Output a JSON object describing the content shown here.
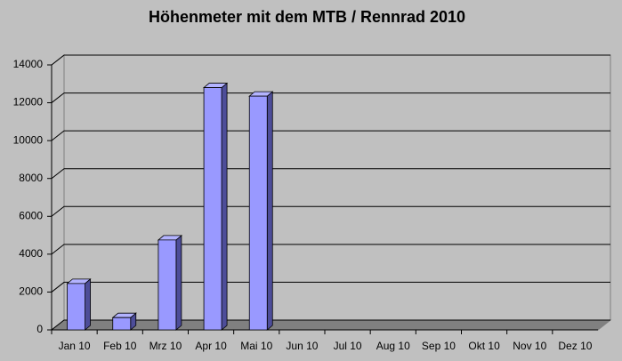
{
  "chart_data": {
    "type": "bar3d",
    "title": "Höhenmeter mit dem MTB / Rennrad 2010",
    "categories": [
      "Jan 10",
      "Feb 10",
      "Mrz 10",
      "Apr 10",
      "Mai 10",
      "Jun 10",
      "Jul 10",
      "Aug 10",
      "Sep 10",
      "Okt 10",
      "Nov 10",
      "Dez 10"
    ],
    "values": [
      2450,
      650,
      4750,
      12800,
      12350,
      null,
      null,
      null,
      null,
      null,
      null,
      null
    ],
    "color": "#9999ff",
    "ylim": [
      0,
      14000
    ],
    "yticks": [
      0,
      2000,
      4000,
      6000,
      8000,
      10000,
      12000,
      14000
    ],
    "grid": true
  }
}
